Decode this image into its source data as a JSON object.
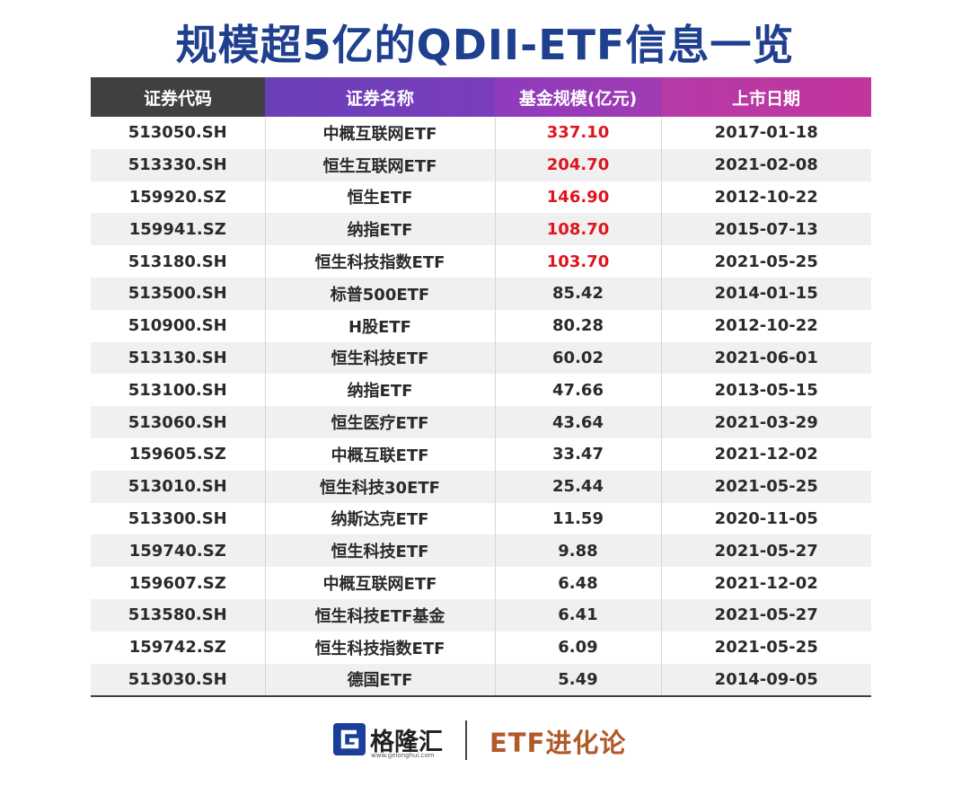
{
  "title": "规模超5亿的QDII-ETF信息一览",
  "table": {
    "headers": [
      "证券代码",
      "证券名称",
      "基金规模(亿元)",
      "上市日期"
    ],
    "highlight_color": "#e0141e",
    "rows": [
      {
        "code": "513050.SH",
        "name": "中概互联网ETF",
        "size": "337.10",
        "date": "2017-01-18",
        "highlight": true
      },
      {
        "code": "513330.SH",
        "name": "恒生互联网ETF",
        "size": "204.70",
        "date": "2021-02-08",
        "highlight": true
      },
      {
        "code": "159920.SZ",
        "name": "恒生ETF",
        "size": "146.90",
        "date": "2012-10-22",
        "highlight": true
      },
      {
        "code": "159941.SZ",
        "name": "纳指ETF",
        "size": "108.70",
        "date": "2015-07-13",
        "highlight": true
      },
      {
        "code": "513180.SH",
        "name": "恒生科技指数ETF",
        "size": "103.70",
        "date": "2021-05-25",
        "highlight": true
      },
      {
        "code": "513500.SH",
        "name": "标普500ETF",
        "size": "85.42",
        "date": "2014-01-15",
        "highlight": false
      },
      {
        "code": "510900.SH",
        "name": "H股ETF",
        "size": "80.28",
        "date": "2012-10-22",
        "highlight": false
      },
      {
        "code": "513130.SH",
        "name": "恒生科技ETF",
        "size": "60.02",
        "date": "2021-06-01",
        "highlight": false
      },
      {
        "code": "513100.SH",
        "name": "纳指ETF",
        "size": "47.66",
        "date": "2013-05-15",
        "highlight": false
      },
      {
        "code": "513060.SH",
        "name": "恒生医疗ETF",
        "size": "43.64",
        "date": "2021-03-29",
        "highlight": false
      },
      {
        "code": "159605.SZ",
        "name": "中概互联ETF",
        "size": "33.47",
        "date": "2021-12-02",
        "highlight": false
      },
      {
        "code": "513010.SH",
        "name": "恒生科技30ETF",
        "size": "25.44",
        "date": "2021-05-25",
        "highlight": false
      },
      {
        "code": "513300.SH",
        "name": "纳斯达克ETF",
        "size": "11.59",
        "date": "2020-11-05",
        "highlight": false
      },
      {
        "code": "159740.SZ",
        "name": "恒生科技ETF",
        "size": "9.88",
        "date": "2021-05-27",
        "highlight": false
      },
      {
        "code": "159607.SZ",
        "name": "中概互联网ETF",
        "size": "6.48",
        "date": "2021-12-02",
        "highlight": false
      },
      {
        "code": "513580.SH",
        "name": "恒生科技ETF基金",
        "size": "6.41",
        "date": "2021-05-27",
        "highlight": false
      },
      {
        "code": "159742.SZ",
        "name": "恒生科技指数ETF",
        "size": "6.09",
        "date": "2021-05-25",
        "highlight": false
      },
      {
        "code": "513030.SH",
        "name": "德国ETF",
        "size": "5.49",
        "date": "2014-09-05",
        "highlight": false
      }
    ]
  },
  "footer": {
    "logo_icon": "gelonghui-g-logo-icon",
    "logo_text": "格隆汇",
    "logo_url": "www.gelonghui.com",
    "brand": "ETF进化论"
  }
}
